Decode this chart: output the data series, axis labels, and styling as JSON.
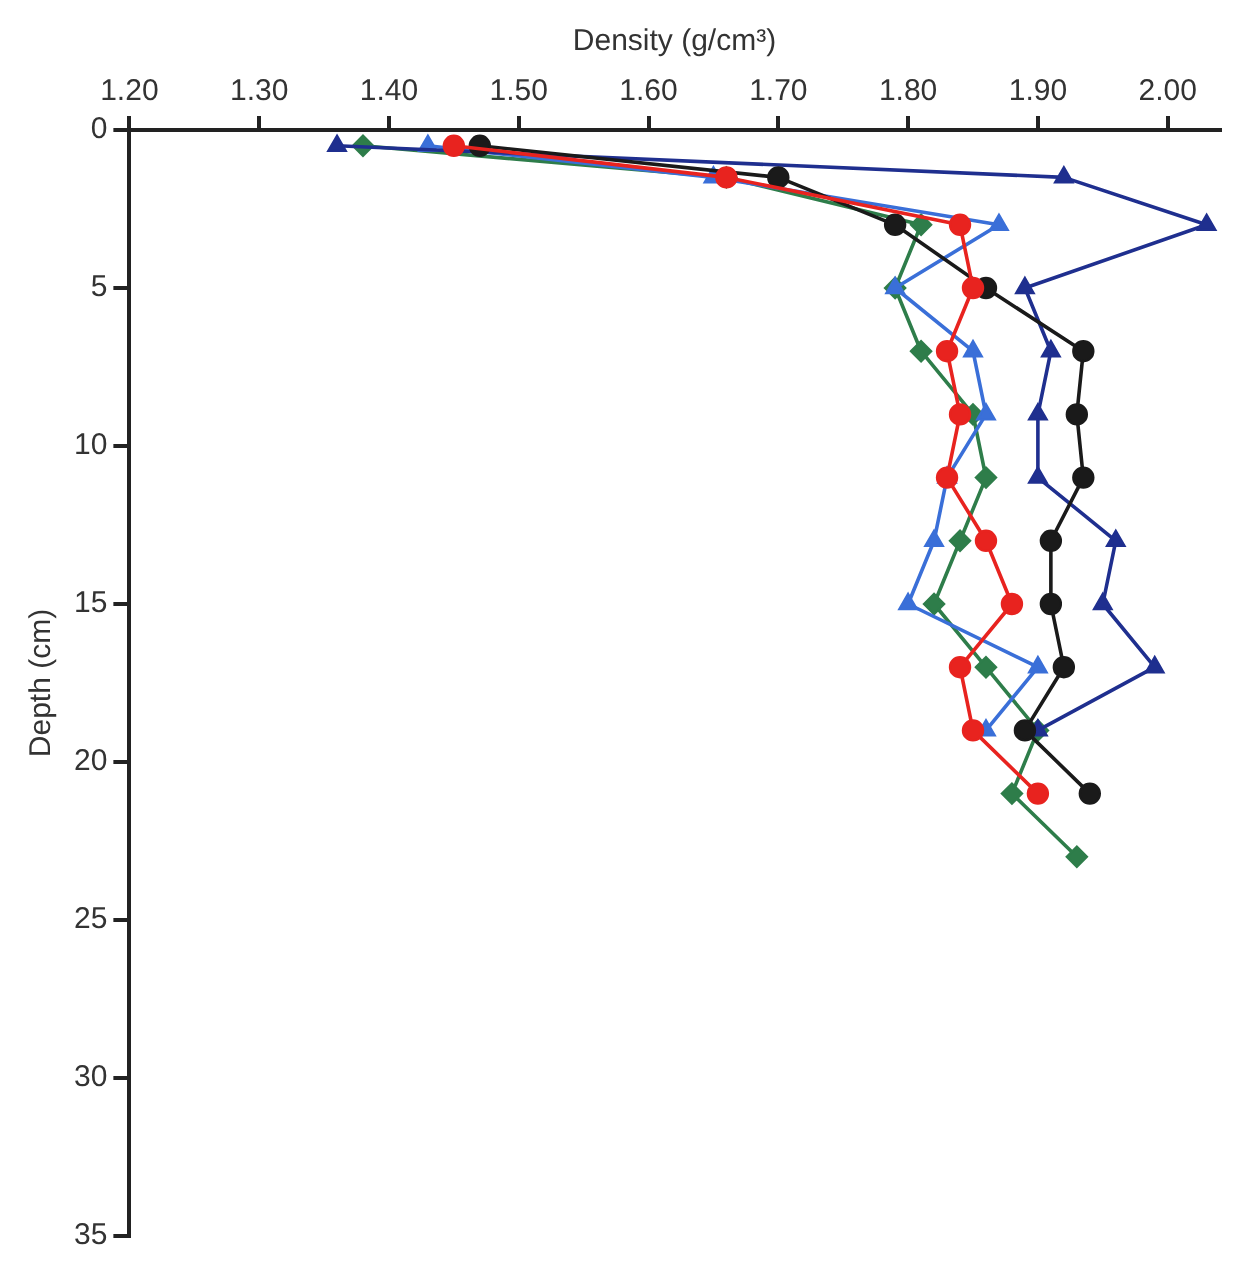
{
  "chart_data": {
    "type": "line",
    "xlabel": "Density (g/cm³)",
    "ylabel": "Depth (cm)",
    "xlim": [
      1.2,
      2.04
    ],
    "xticks": [
      {
        "value": 1.2,
        "label": "1.20"
      },
      {
        "value": 1.3,
        "label": "1.30"
      },
      {
        "value": 1.4,
        "label": "1.40"
      },
      {
        "value": 1.5,
        "label": "1.50"
      },
      {
        "value": 1.6,
        "label": "1.60"
      },
      {
        "value": 1.7,
        "label": "1.70"
      },
      {
        "value": 1.8,
        "label": "1.80"
      },
      {
        "value": 1.9,
        "label": "1.90"
      },
      {
        "value": 2.0,
        "label": "2.00"
      }
    ],
    "ylim": [
      35,
      0
    ],
    "yticks": [
      0,
      5,
      10,
      15,
      20,
      25,
      30,
      35
    ],
    "grid": false,
    "legend": false,
    "line_style": "solid",
    "series": [
      {
        "color": "#e8231f",
        "marker": "circle",
        "x": [
          1.45,
          1.66,
          1.84,
          1.85,
          1.83,
          1.84,
          1.83,
          1.86,
          1.88,
          1.84,
          1.85,
          1.9
        ],
        "values": [
          0.5,
          1.5,
          3,
          5,
          7,
          9,
          11,
          13,
          15,
          17,
          19,
          21
        ]
      },
      {
        "color": "#1a1a1a",
        "marker": "circle",
        "x": [
          1.47,
          1.7,
          1.79,
          1.86,
          1.935,
          1.93,
          1.935,
          1.91,
          1.91,
          1.92,
          1.89,
          1.94
        ],
        "values": [
          0.5,
          1.5,
          3,
          5,
          7,
          9,
          11,
          13,
          15,
          17,
          19,
          21
        ]
      },
      {
        "color": "#1f2f8f",
        "marker": "triangle",
        "x": [
          1.36,
          1.92,
          2.03,
          1.89,
          1.91,
          1.9,
          1.9,
          1.96,
          1.95,
          1.99,
          1.9
        ],
        "values": [
          0.5,
          1.5,
          3,
          5,
          7,
          9,
          11,
          13,
          15,
          17,
          19
        ]
      },
      {
        "color": "#3a6fd8",
        "marker": "triangle",
        "x": [
          1.43,
          1.65,
          1.87,
          1.79,
          1.85,
          1.86,
          1.83,
          1.82,
          1.8,
          1.9,
          1.86
        ],
        "values": [
          0.5,
          1.5,
          3,
          5,
          7,
          9,
          11,
          13,
          15,
          17,
          19
        ]
      },
      {
        "color": "#2e7d4a",
        "marker": "diamond",
        "x": [
          1.38,
          1.66,
          1.81,
          1.79,
          1.81,
          1.85,
          1.86,
          1.84,
          1.82,
          1.86,
          1.9,
          1.88,
          1.93
        ],
        "values": [
          0.5,
          1.5,
          3,
          5,
          7,
          9,
          11,
          13,
          15,
          17,
          19,
          21,
          23
        ]
      }
    ]
  }
}
